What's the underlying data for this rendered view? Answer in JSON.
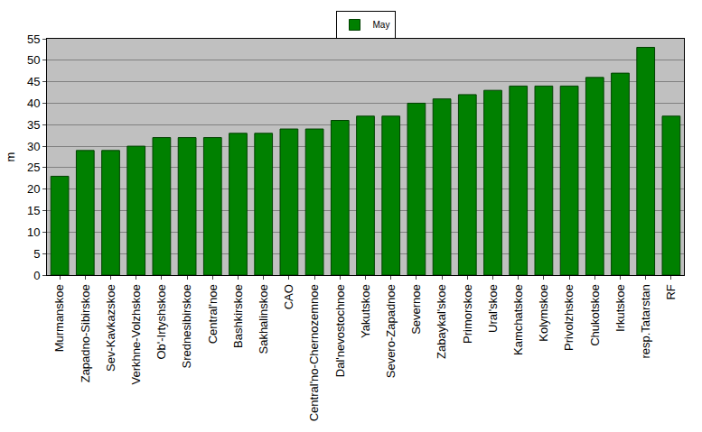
{
  "chart_data": {
    "type": "bar",
    "y_label": "m",
    "categories": [
      "Murmanskoe",
      "Zapadno-Sibirskoe",
      "Sev-Kavkazskoe",
      "Verkhne-Volzhskoe",
      "Ob'-Irtyshskoe",
      "Srednesibirskoe",
      "Central'noe",
      "Bashkirskoe",
      "Sakhalinskoe",
      "CAO",
      "Central'no-Chernozemnoe",
      "Dal'nevostochnoe",
      "Yakutskoe",
      "Severo-Zapadnoe",
      "Severnoe",
      "Zabaykal'skoe",
      "Primorskoe",
      "Ural'skoe",
      "Kamchatskoe",
      "Kolymskoe",
      "Privolzhskoe",
      "Chukotskoe",
      "Irkutskoe",
      "resp.Tatarstan",
      "RF"
    ],
    "series": [
      {
        "name": "May",
        "color": "#008000",
        "values": [
          23,
          29,
          29,
          30,
          32,
          32,
          32,
          33,
          33,
          34,
          34,
          36,
          37,
          37,
          40,
          41,
          42,
          43,
          44,
          44,
          44,
          46,
          47,
          53,
          37
        ]
      }
    ],
    "ylim": [
      0,
      55
    ],
    "yticks": [
      0,
      5,
      10,
      15,
      20,
      25,
      30,
      35,
      40,
      45,
      50,
      55
    ],
    "grid": true,
    "legend": "top"
  }
}
